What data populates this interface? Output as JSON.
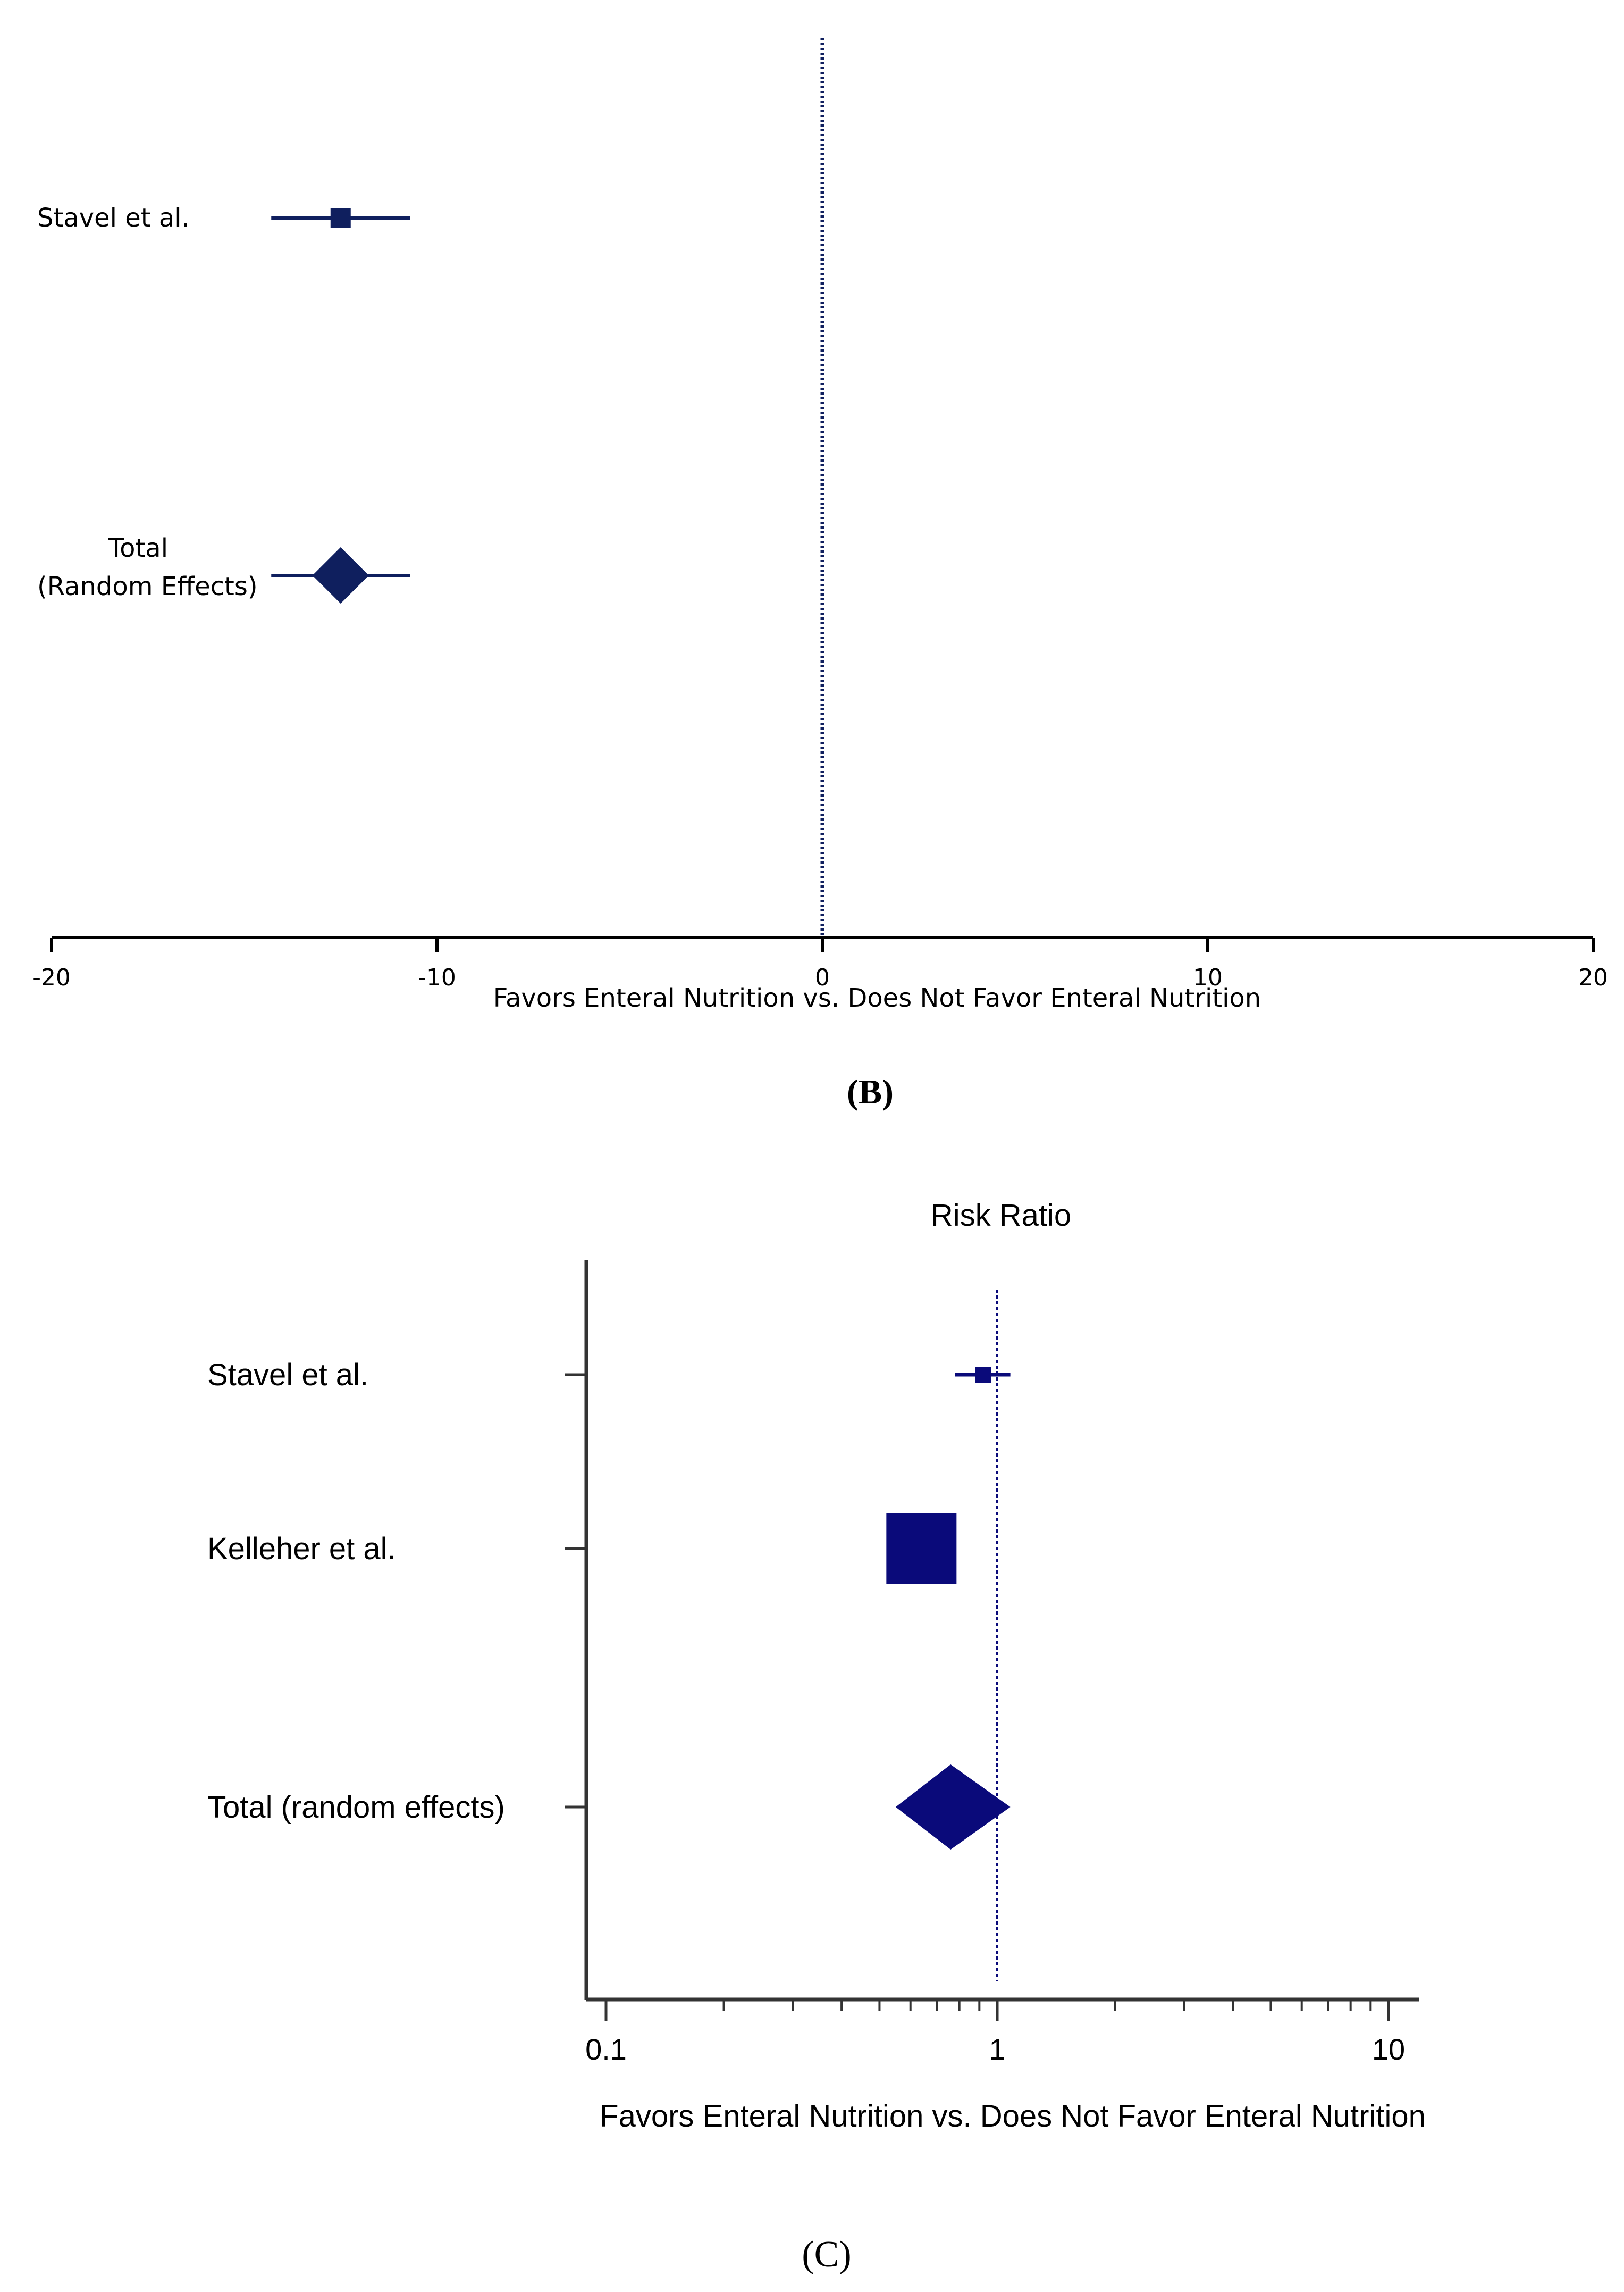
{
  "chart_data": [
    {
      "type": "forest",
      "panel_caption": "(B)",
      "title": "",
      "xlabel": "Favors Enteral Nutrition vs. Does Not Favor Enteral Nutrition",
      "x_scale": "linear",
      "xlim": [
        -20,
        20
      ],
      "xticks": [
        -20,
        -10,
        0,
        10,
        20
      ],
      "xtick_labels": [
        "-20",
        "-10",
        "0",
        "10",
        "20"
      ],
      "null_line": 0,
      "color": "#0f1f5e",
      "rows": [
        {
          "label": "Stavel et al.",
          "label_lines": [
            "Stavel et al."
          ],
          "estimate": -12.5,
          "ci_low": -14.3,
          "ci_high": -10.7,
          "marker": "square"
        },
        {
          "label": "Total (Random Effects)",
          "label_lines": [
            "Total",
            "(Random Effects)"
          ],
          "estimate": -12.5,
          "ci_low": -14.3,
          "ci_high": -10.7,
          "marker": "diamond"
        }
      ]
    },
    {
      "type": "forest",
      "panel_caption": "(C)",
      "title": "Risk Ratio",
      "xlabel": "Favors Enteral Nutrition vs. Does Not Favor Enteral Nutrition",
      "x_scale": "log",
      "xlim": [
        0.1,
        10
      ],
      "xticks": [
        0.1,
        1,
        10
      ],
      "xtick_labels": [
        "0.1",
        "1",
        "10"
      ],
      "null_line": 1,
      "color": "#0a0a7a",
      "rows": [
        {
          "label": "Stavel et al.",
          "label_lines": [
            "Stavel et al."
          ],
          "estimate": 0.92,
          "ci_low": 0.78,
          "ci_high": 1.08,
          "marker": "square",
          "weight": "small"
        },
        {
          "label": "Kelleher et al.",
          "label_lines": [
            "Kelleher et al."
          ],
          "estimate": 0.64,
          "marker": "square",
          "weight": "large"
        },
        {
          "label": "Total (random effects)",
          "label_lines": [
            "Total (random effects)"
          ],
          "estimate": 0.76,
          "ci_low": 0.55,
          "ci_high": 1.08,
          "marker": "diamond"
        }
      ]
    }
  ]
}
